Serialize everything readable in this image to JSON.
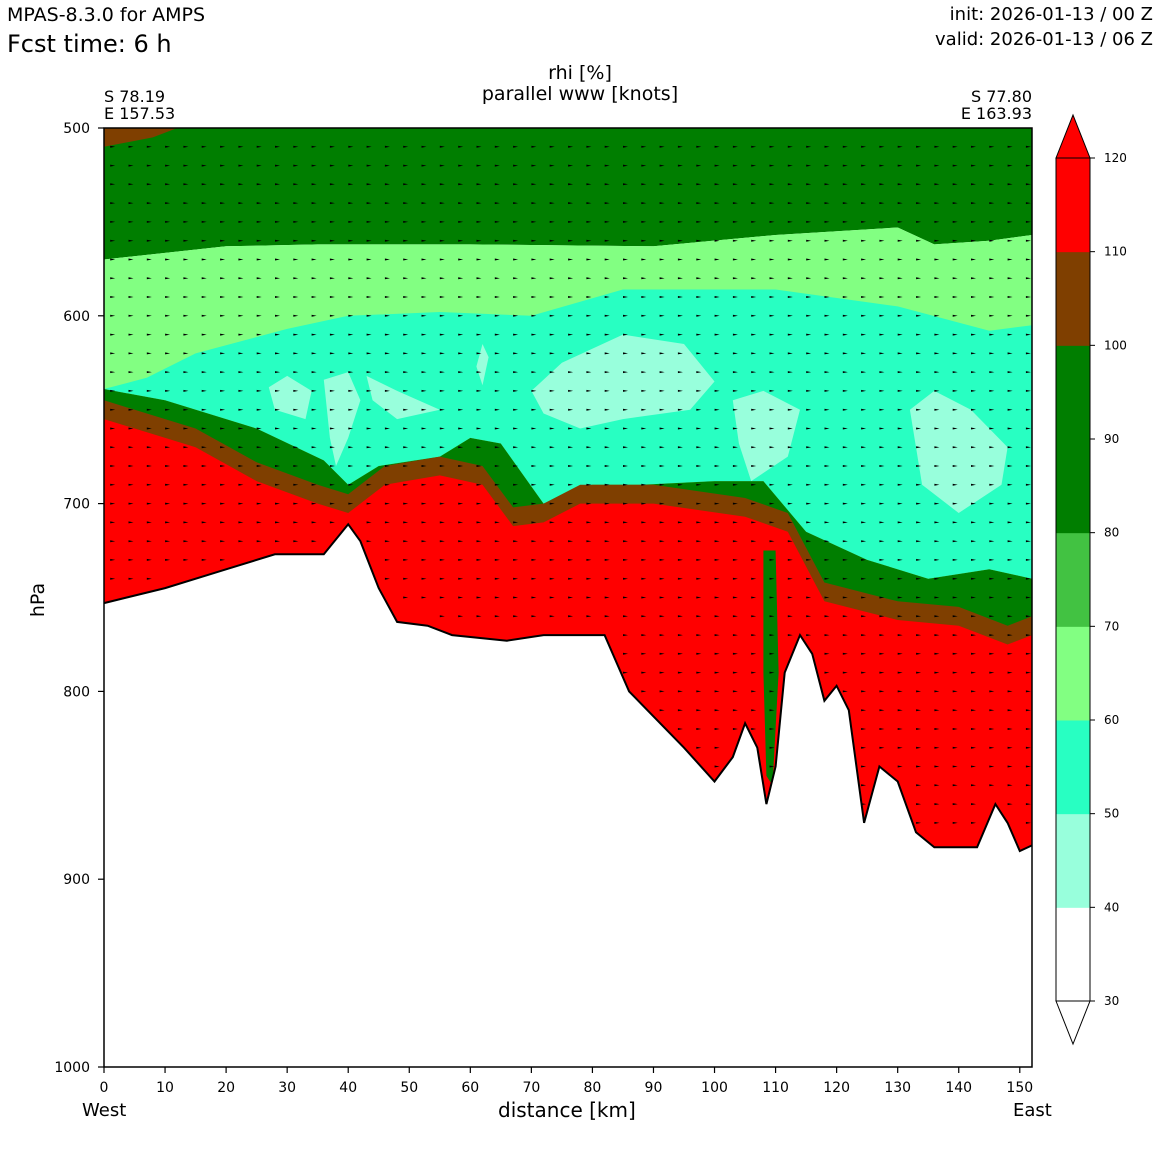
{
  "header": {
    "model": "MPAS-8.3.0 for AMPS",
    "fcst_time": "Fcst time:    6 h",
    "init": "init: 2026-01-13 / 00 Z",
    "valid": "valid: 2026-01-13 / 06 Z"
  },
  "cross_section": {
    "start_lat": "S 78.19",
    "start_lon": "E 157.53",
    "end_lat": "S 77.80",
    "end_lon": "E 163.93",
    "west": "West",
    "east": "East"
  },
  "chart_data": {
    "type": "heatmap",
    "title": "rhi [%]",
    "subtitle": "parallel www [knots]",
    "xlabel": "distance [km]",
    "ylabel": "hPa",
    "xlim": [
      0,
      152
    ],
    "ylim": [
      1000,
      500
    ],
    "x_ticks": [
      0,
      10,
      20,
      30,
      40,
      50,
      60,
      70,
      80,
      90,
      100,
      110,
      120,
      130,
      140,
      150
    ],
    "y_ticks": [
      500,
      600,
      700,
      800,
      900,
      1000
    ],
    "colorbar": {
      "levels": [
        30,
        40,
        50,
        60,
        70,
        80,
        90,
        100,
        110,
        120
      ],
      "colors": [
        "#ffffff",
        "#98ffdc",
        "#28ffc2",
        "#82ff82",
        "#42c242",
        "#007e00",
        "#007e00",
        "#7f3f00",
        "#ff0000"
      ],
      "extend": "both"
    },
    "terrain_surface_hpa": [
      {
        "x": 0,
        "p": 753
      },
      {
        "x": 10,
        "p": 745
      },
      {
        "x": 20,
        "p": 735
      },
      {
        "x": 28,
        "p": 727
      },
      {
        "x": 36,
        "p": 727
      },
      {
        "x": 40,
        "p": 711
      },
      {
        "x": 42,
        "p": 720
      },
      {
        "x": 45,
        "p": 745
      },
      {
        "x": 48,
        "p": 763
      },
      {
        "x": 53,
        "p": 765
      },
      {
        "x": 57,
        "p": 770
      },
      {
        "x": 66,
        "p": 773
      },
      {
        "x": 72,
        "p": 770
      },
      {
        "x": 82,
        "p": 770
      },
      {
        "x": 86,
        "p": 800
      },
      {
        "x": 89,
        "p": 810
      },
      {
        "x": 95,
        "p": 830
      },
      {
        "x": 100,
        "p": 848
      },
      {
        "x": 103,
        "p": 835
      },
      {
        "x": 105,
        "p": 817
      },
      {
        "x": 107,
        "p": 830
      },
      {
        "x": 108.5,
        "p": 860
      },
      {
        "x": 110,
        "p": 840
      },
      {
        "x": 111.5,
        "p": 790
      },
      {
        "x": 114,
        "p": 770
      },
      {
        "x": 116,
        "p": 780
      },
      {
        "x": 118,
        "p": 805
      },
      {
        "x": 120,
        "p": 797
      },
      {
        "x": 122,
        "p": 810
      },
      {
        "x": 124.5,
        "p": 870
      },
      {
        "x": 127,
        "p": 840
      },
      {
        "x": 130,
        "p": 848
      },
      {
        "x": 133,
        "p": 875
      },
      {
        "x": 136,
        "p": 883
      },
      {
        "x": 143,
        "p": 883
      },
      {
        "x": 146,
        "p": 860
      },
      {
        "x": 148,
        "p": 870
      },
      {
        "x": 150,
        "p": 885
      },
      {
        "x": 152,
        "p": 882
      }
    ],
    "rhi_layers_hpa": {
      "green_top_base": [
        {
          "x": 0,
          "p": 570
        },
        {
          "x": 20,
          "p": 563
        },
        {
          "x": 35,
          "p": 562
        },
        {
          "x": 60,
          "p": 562
        },
        {
          "x": 90,
          "p": 563
        },
        {
          "x": 110,
          "p": 557
        },
        {
          "x": 130,
          "p": 553
        },
        {
          "x": 136,
          "p": 562
        },
        {
          "x": 145,
          "p": 560
        },
        {
          "x": 152,
          "p": 557
        }
      ],
      "cyan_top": [
        {
          "x": 7,
          "p": 633
        },
        {
          "x": 15,
          "p": 620
        },
        {
          "x": 30,
          "p": 607
        },
        {
          "x": 40,
          "p": 600
        },
        {
          "x": 55,
          "p": 598
        },
        {
          "x": 70,
          "p": 600
        },
        {
          "x": 85,
          "p": 586
        },
        {
          "x": 110,
          "p": 586
        },
        {
          "x": 130,
          "p": 595
        },
        {
          "x": 145,
          "p": 608
        },
        {
          "x": 152,
          "p": 605
        }
      ],
      "moist_top": [
        {
          "x": 0,
          "p": 639
        },
        {
          "x": 10,
          "p": 645
        },
        {
          "x": 25,
          "p": 660
        },
        {
          "x": 36,
          "p": 677
        },
        {
          "x": 40,
          "p": 690
        },
        {
          "x": 45,
          "p": 680
        },
        {
          "x": 55,
          "p": 675
        },
        {
          "x": 60,
          "p": 665
        },
        {
          "x": 65,
          "p": 668
        },
        {
          "x": 72,
          "p": 700
        },
        {
          "x": 80,
          "p": 690
        },
        {
          "x": 88,
          "p": 690
        },
        {
          "x": 100,
          "p": 688
        },
        {
          "x": 108,
          "p": 688
        },
        {
          "x": 115,
          "p": 715
        },
        {
          "x": 125,
          "p": 730
        },
        {
          "x": 135,
          "p": 740
        },
        {
          "x": 145,
          "p": 735
        },
        {
          "x": 152,
          "p": 740
        }
      ],
      "red_top": [
        {
          "x": 0,
          "p": 655
        },
        {
          "x": 15,
          "p": 670
        },
        {
          "x": 25,
          "p": 688
        },
        {
          "x": 35,
          "p": 700
        },
        {
          "x": 40,
          "p": 705
        },
        {
          "x": 46,
          "p": 690
        },
        {
          "x": 55,
          "p": 685
        },
        {
          "x": 62,
          "p": 690
        },
        {
          "x": 67,
          "p": 712
        },
        {
          "x": 72,
          "p": 710
        },
        {
          "x": 78,
          "p": 700
        },
        {
          "x": 90,
          "p": 700
        },
        {
          "x": 105,
          "p": 707
        },
        {
          "x": 112,
          "p": 715
        },
        {
          "x": 118,
          "p": 752
        },
        {
          "x": 130,
          "p": 762
        },
        {
          "x": 140,
          "p": 765
        },
        {
          "x": 148,
          "p": 775
        },
        {
          "x": 152,
          "p": 770
        }
      ]
    }
  }
}
